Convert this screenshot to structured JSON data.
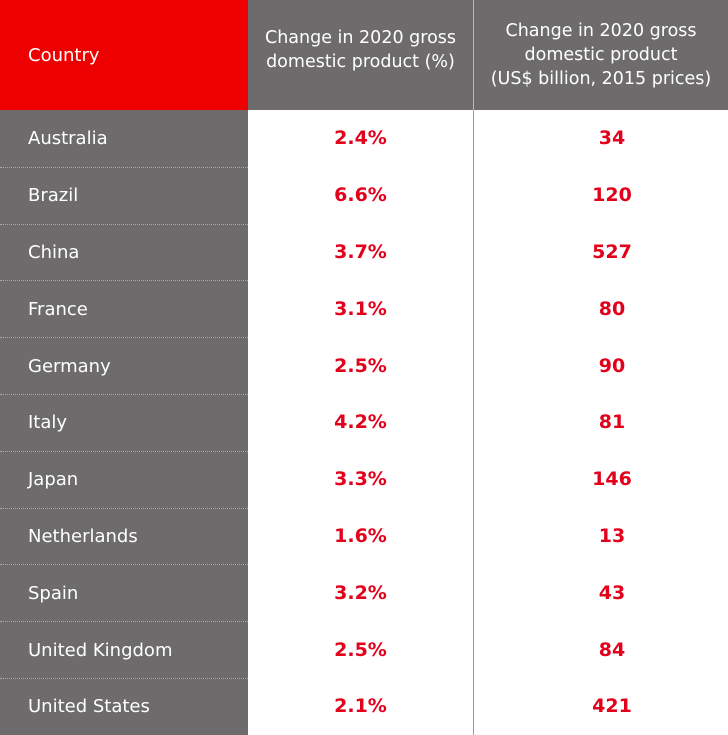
{
  "header": {
    "country": "Country",
    "pct_change": "Change in 2020 gross\ndomestic product (%)",
    "usd_change": "Change in 2020 gross\ndomestic product\n(US$ billion, 2015 prices)"
  },
  "rows": [
    {
      "country": "Australia",
      "pct": "2.4%",
      "usd": "34"
    },
    {
      "country": "Brazil",
      "pct": "6.6%",
      "usd": "120"
    },
    {
      "country": "China",
      "pct": "3.7%",
      "usd": "527"
    },
    {
      "country": "France",
      "pct": "3.1%",
      "usd": "80"
    },
    {
      "country": "Germany",
      "pct": "2.5%",
      "usd": "90"
    },
    {
      "country": "Italy",
      "pct": "4.2%",
      "usd": "81"
    },
    {
      "country": "Japan",
      "pct": "3.3%",
      "usd": "146"
    },
    {
      "country": "Netherlands",
      "pct": "1.6%",
      "usd": "13"
    },
    {
      "country": "Spain",
      "pct": "3.2%",
      "usd": "43"
    },
    {
      "country": "United Kingdom",
      "pct": "2.5%",
      "usd": "84"
    },
    {
      "country": "United States",
      "pct": "2.1%",
      "usd": "421"
    }
  ],
  "colors": {
    "header_accent": "#ee0000",
    "header_gray": "#6d6b6b",
    "value_red": "#e3001b"
  }
}
